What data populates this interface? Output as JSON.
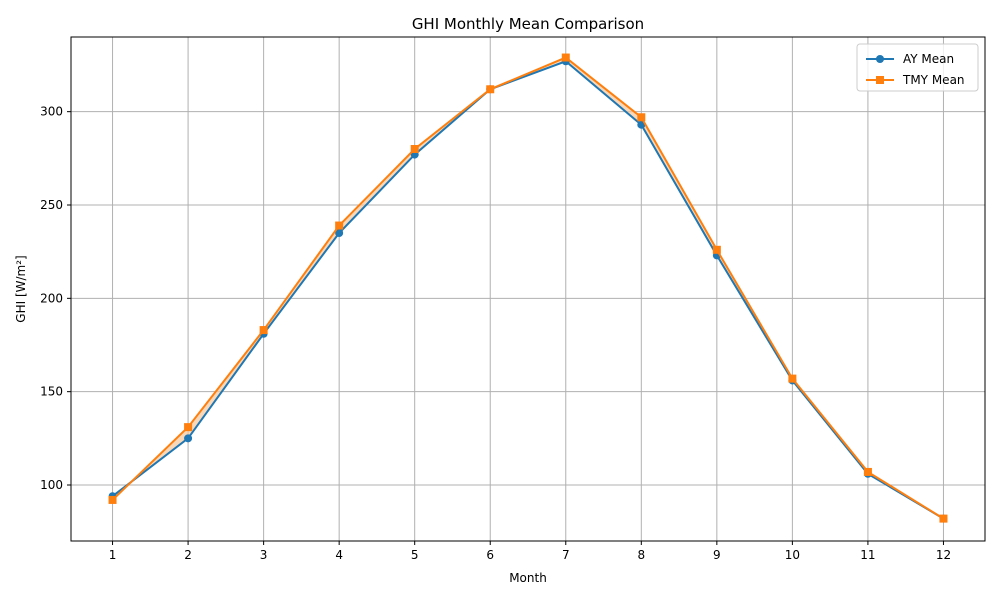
{
  "chart_data": {
    "type": "line",
    "title": "GHI Monthly Mean Comparison",
    "xlabel": "Month",
    "ylabel": "GHI [W/m²]",
    "x": [
      1,
      2,
      3,
      4,
      5,
      6,
      7,
      8,
      9,
      10,
      11,
      12
    ],
    "xlim": [
      0.45,
      12.55
    ],
    "ylim": [
      70,
      340
    ],
    "yticks": [
      100,
      150,
      200,
      250,
      300
    ],
    "grid": true,
    "legend_position": "top-right",
    "fill_between_color": "#f5c89b",
    "series": [
      {
        "name": "AY Mean",
        "color": "#1f77b4",
        "marker": "circle",
        "values": [
          94,
          125,
          181,
          235,
          277,
          312,
          327,
          293,
          223,
          156,
          106,
          82
        ]
      },
      {
        "name": "TMY Mean",
        "color": "#ff7f0e",
        "marker": "square",
        "values": [
          92,
          131,
          183,
          239,
          280,
          312,
          329,
          297,
          226,
          157,
          107,
          82
        ]
      }
    ]
  }
}
